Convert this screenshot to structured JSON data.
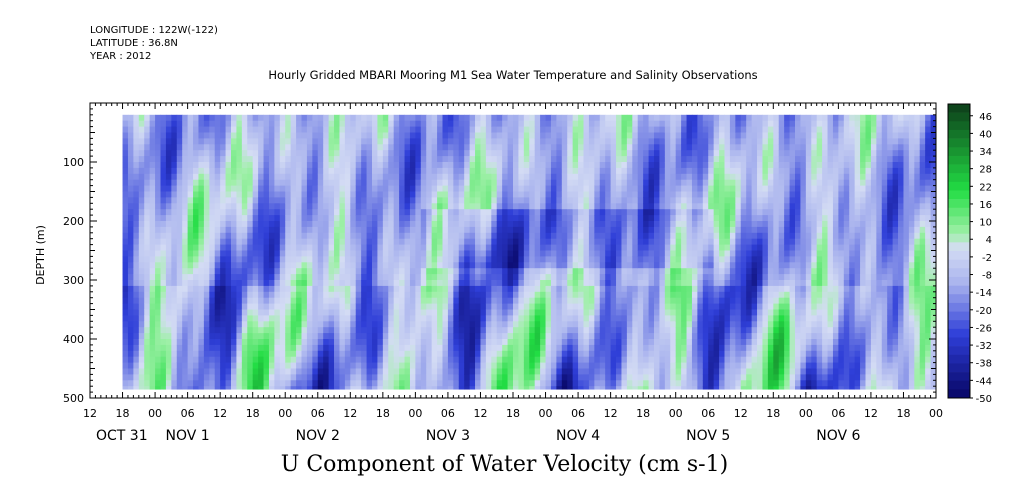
{
  "meta": {
    "longitude": "LONGITUDE : 122W(-122)",
    "latitude": "LATITUDE : 36.8N",
    "year": "YEAR : 2012"
  },
  "colors": {
    "negative_dark": "#0a0a6e",
    "negative_mid": "#2f3fd8",
    "negative_light": "#aab4ee",
    "near_zero": "#d4dcf4",
    "positive_light": "#9ff0a8",
    "positive_mid": "#22dd44",
    "positive_dark": "#0d3d1a"
  },
  "chart_data": {
    "type": "heatmap",
    "title": "Hourly Gridded MBARI Mooring M1 Sea Water Temperature and Salinity Observations",
    "subtitle": "U Component of Water Velocity (cm s-1)",
    "ylabel": "DEPTH (m)",
    "xlabel": "",
    "ylim": [
      500,
      0
    ],
    "y_data_range": [
      20,
      485
    ],
    "y_ticks": [
      100,
      200,
      300,
      400,
      500
    ],
    "x_range_hours": [
      0,
      156
    ],
    "x_data_start_hour": 6,
    "x_tick_labels": [
      "12",
      "18",
      "00",
      "06",
      "12",
      "18",
      "00",
      "06",
      "12",
      "18",
      "00",
      "06",
      "12",
      "18",
      "00",
      "06",
      "12",
      "18",
      "00",
      "06",
      "12",
      "18",
      "00",
      "06",
      "12",
      "18",
      "00"
    ],
    "date_labels": [
      "OCT 31",
      "NOV  1",
      "NOV  2",
      "NOV  3",
      "NOV  4",
      "NOV  5",
      "NOV  6"
    ],
    "colorbar": {
      "min": -50,
      "max": 50,
      "step": 3,
      "labels": [
        "46",
        "40",
        "34",
        "28",
        "22",
        "16",
        "10",
        "4",
        "-2",
        "-8",
        "-14",
        "-20",
        "-26",
        "-32",
        "-38",
        "-44",
        "-50"
      ]
    }
  }
}
